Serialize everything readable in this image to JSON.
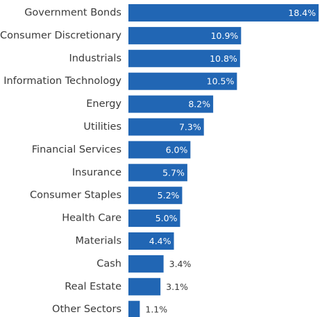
{
  "chart_data": {
    "type": "bar",
    "orientation": "horizontal",
    "categories": [
      "Government Bonds",
      "Consumer Discretionary",
      "Industrials",
      "Information Technology",
      "Energy",
      "Utilities",
      "Financial Services",
      "Insurance",
      "Consumer Staples",
      "Health Care",
      "Materials",
      "Cash",
      "Real Estate",
      "Other Sectors"
    ],
    "values": [
      18.4,
      10.9,
      10.8,
      10.5,
      8.2,
      7.3,
      6.0,
      5.7,
      5.2,
      5.0,
      4.4,
      3.4,
      3.1,
      1.1
    ],
    "value_labels": [
      "18.4%",
      "10.9%",
      "10.8%",
      "10.5%",
      "8.2%",
      "7.3%",
      "6.0%",
      "5.7%",
      "5.2%",
      "5.0%",
      "4.4%",
      "3.4%",
      "3.1%",
      "1.1%"
    ],
    "title": "",
    "xlabel": "",
    "ylabel": "",
    "xlim": [
      0,
      18.4
    ],
    "grid": false,
    "legend": "none",
    "colors": {
      "bar": "#2166b4",
      "label_outside": "#3a3a3a",
      "label_inside": "#ffffff"
    }
  }
}
